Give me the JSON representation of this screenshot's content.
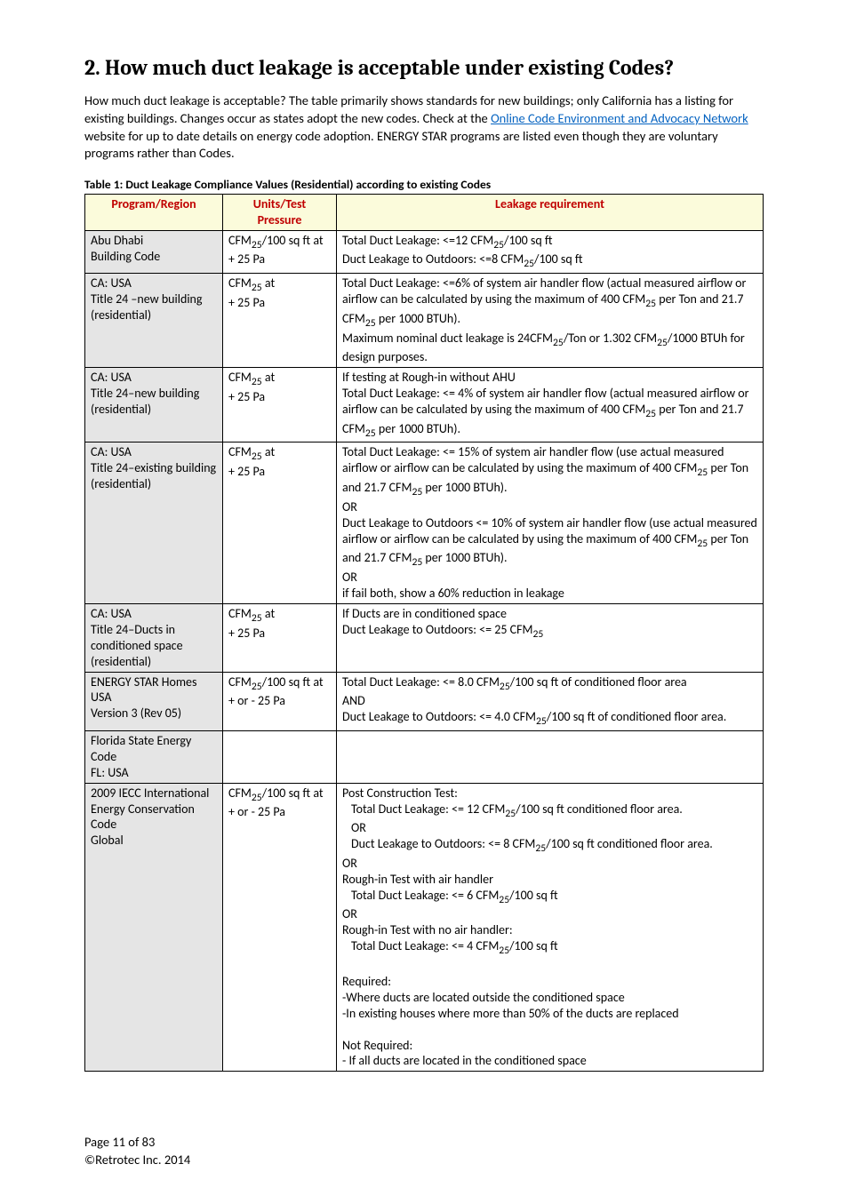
{
  "heading": "2. How much duct leakage is acceptable under existing Codes?",
  "intro_pre": "How much duct leakage is acceptable?  The table primarily shows standards for new buildings; only California has a listing for existing buildings.  Changes occur as states adopt the new codes.  Check at the ",
  "intro_link": "Online Code Environment and Advocacy Network",
  "intro_post": " website for up to date details on energy code adoption.  ENERGY STAR programs are listed even though they are voluntary programs rather than Codes.",
  "table_caption": "Table 1:  Duct Leakage Compliance Values (Residential) according to existing Codes",
  "columns": {
    "c1a": "Program/Region",
    "c2a": "Units/Test",
    "c2b": "Pressure",
    "c3a": "Leakage requirement"
  },
  "rows": {
    "r0": {
      "region1": "Abu Dhabi",
      "region2": "Building Code",
      "units_html": "CFM<sub>25</sub>/100 sq ft at<br>+ 25 Pa",
      "req_html": "Total Duct Leakage:  <=12 CFM<sub>25</sub>/100 sq ft<br>Duct Leakage to Outdoors:  <=8 CFM<sub>25</sub>/100 sq ft"
    },
    "r1": {
      "region1": "CA: USA",
      "region2": "Title 24 –new building (residential)",
      "units_html": "CFM<sub>25</sub> at<br>+ 25 Pa",
      "req_html": "Total Duct Leakage:  <=6% of system air handler flow (actual measured airflow or airflow can be calculated by using the maximum of 400 CFM<sub>25</sub> per Ton and 21.7 CFM<sub>25</sub> per 1000 BTUh).<br>Maximum nominal duct leakage is 24CFM<sub>25</sub>/Ton or 1.302 CFM<sub>25</sub>/1000 BTUh for design purposes."
    },
    "r2": {
      "region1": "CA: USA",
      "region2": "Title 24–new building (residential)",
      "units_html": "CFM<sub>25</sub> at<br>+ 25 Pa",
      "req_html": "If  testing at Rough-in without AHU<br>Total Duct Leakage:  <= 4% of system air handler flow (actual measured airflow or airflow can be calculated by using the maximum of 400 CFM<sub>25</sub> per Ton and 21.7 CFM<sub>25</sub> per 1000 BTUh)."
    },
    "r3": {
      "region1": "CA:  USA",
      "region2": "Title 24–existing building (residential)",
      "units_html": "CFM<sub>25</sub> at<br>+ 25 Pa",
      "req_html": "Total Duct Leakage:  <= 15% of system air handler flow (use actual measured airflow or airflow can be calculated by using the maximum of 400 CFM<sub>25</sub> per Ton and 21.7 CFM<sub>25</sub> per 1000 BTUh).<br>OR<br>Duct Leakage to Outdoors <= 10% of system air handler flow (use actual measured airflow or airflow can be calculated by using the maximum of 400 CFM<sub>25</sub> per Ton and 21.7 CFM<sub>25</sub> per 1000 BTUh).<br>OR<br>if fail both, show a 60% reduction in leakage"
    },
    "r4": {
      "region1": "CA: USA",
      "region2": "Title 24–Ducts in conditioned space (residential)",
      "units_html": "CFM<sub>25</sub>  at<br>+ 25 Pa",
      "req_html": "If Ducts are in conditioned space<br>Duct Leakage to Outdoors:  <= 25 CFM<sub>25</sub>"
    },
    "r5": {
      "region1": "ENERGY STAR Homes",
      "region2": "USA",
      "region3": "Version 3 (Rev 05)",
      "units_html": "CFM<sub>25</sub>/100 sq ft at<br>+ or - 25 Pa",
      "req_html": "Total Duct Leakage: <= 8.0 CFM<sub>25</sub>/100 sq ft of conditioned floor area<br>AND<br>Duct Leakage to Outdoors: <= 4.0 CFM<sub>25</sub>/100 sq ft of conditioned floor area."
    },
    "r6": {
      "region1": "Florida State Energy Code",
      "region2": "FL: USA",
      "units_html": "",
      "req_html": ""
    },
    "r7": {
      "region1": "2009 IECC International Energy Conservation Code",
      "region2": "",
      "region3": "Global",
      "units_html": "CFM<sub>25</sub>/100 sq ft at<br>+ or - 25 Pa",
      "req_html": "Post Construction Test:<br><span class='indent'>Total Duct Leakage:  <= 12 CFM<sub>25</sub>/100 sq ft conditioned floor area.</span><span class='indent'>OR</span><span class='indent'>Duct Leakage to Outdoors:  <= 8 CFM<sub>25</sub>/100 sq ft conditioned floor area.</span>OR<br>Rough-in Test with air handler<br><span class='indent'>Total Duct Leakage:  <= 6 CFM<sub>25</sub>/100 sq ft</span>OR<br>Rough-in Test with no air handler:<br><span class='indent'>Total Duct Leakage:  <= 4 CFM<sub>25</sub>/100 sq ft</span><br>Required:<br>-Where ducts are located outside the conditioned space<br>-In existing houses where more than 50% of the ducts are replaced<br><br>Not Required:<br>- If all ducts are located in the conditioned space"
    }
  },
  "footer": {
    "page": "Page 11 of 83",
    "copyright": "©Retrotec Inc. 2014"
  }
}
